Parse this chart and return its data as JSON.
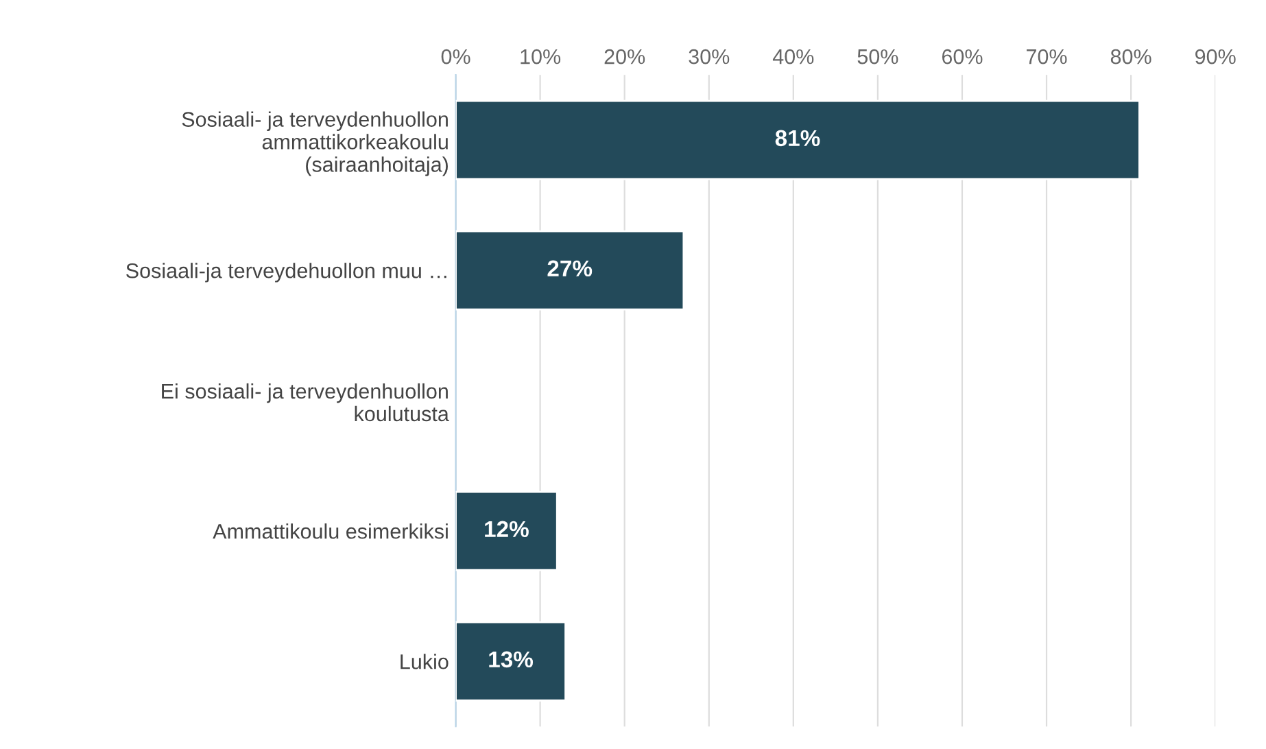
{
  "chart_data": {
    "type": "bar",
    "orientation": "horizontal",
    "categories": [
      "Sosiaali- ja terveydenhuollon\nammattikorkeakoulu\n(sairaanhoitaja)",
      "Sosiaali-ja terveydehuollon muu …",
      "Ei sosiaali- ja terveydenhuollon\nkoulutusta",
      "Ammattikoulu esimerkiksi",
      "Lukio"
    ],
    "values": [
      81,
      27,
      null,
      12,
      13
    ],
    "value_labels": [
      "81%",
      "27%",
      null,
      "12%",
      "13%"
    ],
    "color": "#234a5a",
    "xlim": [
      0,
      90
    ],
    "xticks": [
      {
        "value": 0,
        "label": "0%"
      },
      {
        "value": 10,
        "label": "10%"
      },
      {
        "value": 20,
        "label": "20%"
      },
      {
        "value": 30,
        "label": "30%"
      },
      {
        "value": 40,
        "label": "40%"
      },
      {
        "value": 50,
        "label": "50%"
      },
      {
        "value": 60,
        "label": "60%"
      },
      {
        "value": 70,
        "label": "70%"
      },
      {
        "value": 80,
        "label": "80%"
      },
      {
        "value": 90,
        "label": "90%"
      }
    ],
    "grid": "x",
    "legend": false
  }
}
